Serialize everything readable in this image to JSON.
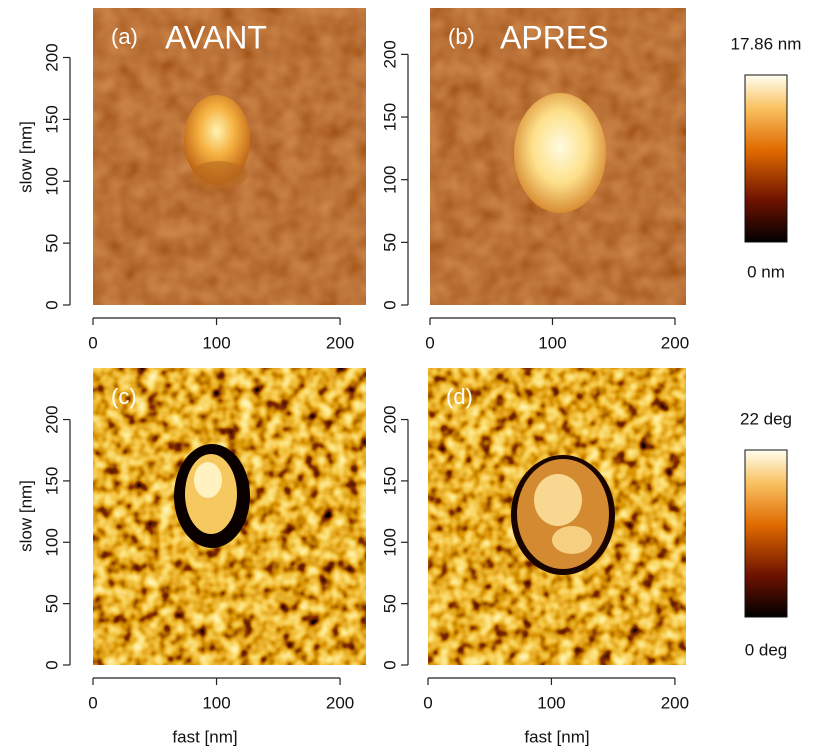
{
  "panels": [
    {
      "label": "(a)",
      "title": "AVANT",
      "xlim": [
        0,
        221
      ],
      "ylim": [
        0,
        240
      ],
      "xticks": [
        0,
        100,
        200
      ],
      "yticks": [
        0,
        50,
        100,
        150,
        200
      ]
    },
    {
      "label": "(b)",
      "title": "APRES",
      "xlim": [
        0,
        209
      ],
      "ylim": [
        0,
        237
      ],
      "xticks": [
        0,
        100,
        200
      ],
      "yticks": [
        0,
        50,
        100,
        150,
        200
      ]
    },
    {
      "label": "(c)",
      "xlim": [
        0,
        221
      ],
      "ylim": [
        0,
        242
      ],
      "xticks": [
        0,
        100,
        200
      ],
      "yticks": [
        0,
        50,
        100,
        150,
        200
      ]
    },
    {
      "label": "(d)",
      "xlim": [
        0,
        209
      ],
      "ylim": [
        0,
        242
      ],
      "xticks": [
        0,
        100,
        200
      ],
      "yticks": [
        0,
        50,
        100,
        150,
        200
      ]
    }
  ],
  "y_axis_label": "slow [nm]",
  "x_axis_label": "fast [nm]",
  "colorbars": [
    {
      "max_label": "17.86 nm",
      "min_label": "0 nm"
    },
    {
      "max_label": "22 deg",
      "min_label": "0 deg"
    }
  ]
}
